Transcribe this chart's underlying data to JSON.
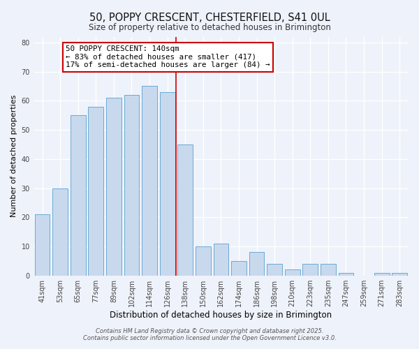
{
  "title": "50, POPPY CRESCENT, CHESTERFIELD, S41 0UL",
  "subtitle": "Size of property relative to detached houses in Brimington",
  "xlabel": "Distribution of detached houses by size in Brimington",
  "ylabel": "Number of detached properties",
  "bar_labels": [
    "41sqm",
    "53sqm",
    "65sqm",
    "77sqm",
    "89sqm",
    "102sqm",
    "114sqm",
    "126sqm",
    "138sqm",
    "150sqm",
    "162sqm",
    "174sqm",
    "186sqm",
    "198sqm",
    "210sqm",
    "223sqm",
    "235sqm",
    "247sqm",
    "259sqm",
    "271sqm",
    "283sqm"
  ],
  "bar_values": [
    21,
    30,
    55,
    58,
    61,
    62,
    65,
    63,
    45,
    10,
    11,
    5,
    8,
    4,
    2,
    4,
    4,
    1,
    0,
    1,
    1
  ],
  "bar_color": "#c8d9ee",
  "bar_edge_color": "#6aaad4",
  "highlight_line_color": "#cc0000",
  "annotation_title": "50 POPPY CRESCENT: 140sqm",
  "annotation_line1": "← 83% of detached houses are smaller (417)",
  "annotation_line2": "17% of semi-detached houses are larger (84) →",
  "annotation_box_color": "#ffffff",
  "annotation_box_edge_color": "#cc0000",
  "ylim": [
    0,
    82
  ],
  "yticks": [
    0,
    10,
    20,
    30,
    40,
    50,
    60,
    70,
    80
  ],
  "background_color": "#eef2fa",
  "grid_color": "#ffffff",
  "footer_line1": "Contains HM Land Registry data © Crown copyright and database right 2025.",
  "footer_line2": "Contains public sector information licensed under the Open Government Licence v3.0."
}
